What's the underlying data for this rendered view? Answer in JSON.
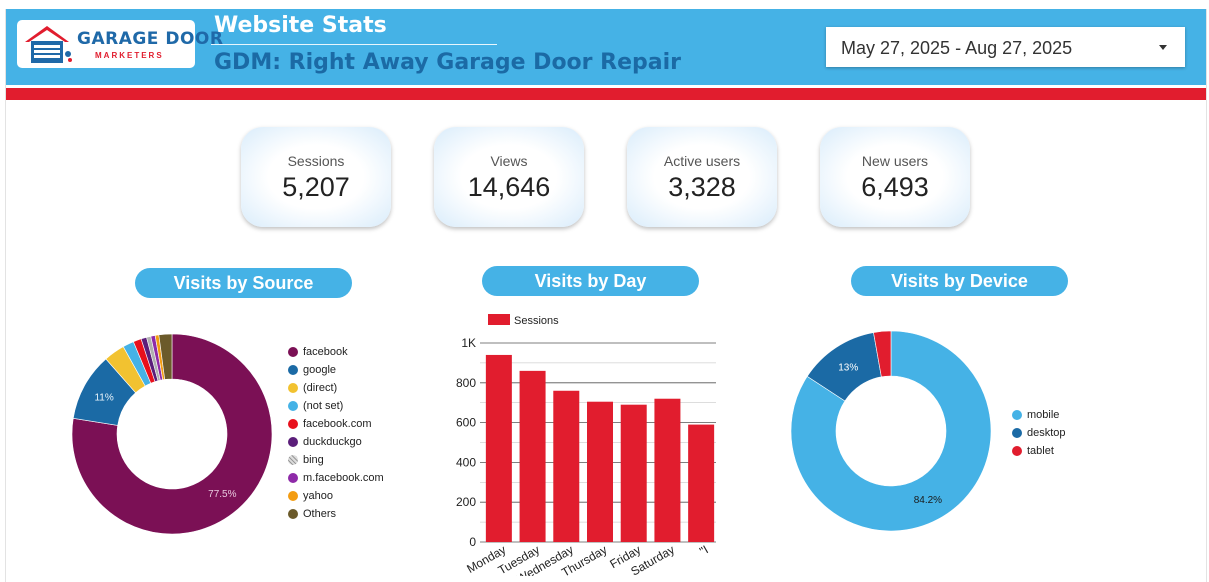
{
  "header": {
    "logo_text_top_a": "GARAGE DOOR",
    "logo_text_bottom": "MARKETERS",
    "title": "Website Stats",
    "subtitle": "GDM: Right Away Garage Door Repair",
    "date_range": "May 27, 2025 - Aug 27, 2025",
    "colors": {
      "header": "#45b2e6",
      "accent_red": "#e11d2e",
      "subtitle": "#1b6aa5"
    }
  },
  "kpis": [
    {
      "label": "Sessions",
      "value": "5,207"
    },
    {
      "label": "Views",
      "value": "14,646"
    },
    {
      "label": "Active users",
      "value": "3,328"
    },
    {
      "label": "New users",
      "value": "6,493"
    }
  ],
  "sections": {
    "source": "Visits by Source",
    "day": "Visits by Day",
    "device": "Visits by Device"
  },
  "chart_data": [
    {
      "type": "pie",
      "title": "Visits by Source",
      "legend_position": "right",
      "categories": [
        "facebook",
        "google",
        "(direct)",
        "(not set)",
        "facebook.com",
        "duckduckgo",
        "bing",
        "m.facebook.com",
        "yahoo",
        "Others"
      ],
      "values": [
        77.5,
        11,
        3.4,
        1.8,
        1.3,
        0.9,
        0.7,
        0.7,
        0.6,
        2.1
      ],
      "colors": [
        "#7b1055",
        "#1b6aa5",
        "#f2c230",
        "#45b2e6",
        "#e8101c",
        "#5b1e7a",
        "#b0b0b0",
        "#8e2aa8",
        "#f39c12",
        "#6b5a2a"
      ],
      "data_labels": [
        "77.5%",
        "11%",
        "",
        "",
        "",
        "",
        "",
        "",
        "",
        ""
      ]
    },
    {
      "type": "bar",
      "title": "Visits by Day",
      "series": [
        {
          "name": "Sessions",
          "values": [
            940,
            860,
            760,
            705,
            690,
            720,
            590
          ],
          "color": "#e11d2e"
        }
      ],
      "categories": [
        "Monday",
        "Tuesday",
        "Wednesday",
        "Thursday",
        "Friday",
        "Saturday",
        "\"I"
      ],
      "y_ticks": [
        "0",
        "200",
        "400",
        "600",
        "800",
        "1K"
      ],
      "ylim": [
        0,
        1000
      ],
      "grid": true,
      "legend_position": "top-left"
    },
    {
      "type": "pie",
      "title": "Visits by Device",
      "legend_position": "right",
      "categories": [
        "mobile",
        "desktop",
        "tablet"
      ],
      "values": [
        84.2,
        13,
        2.8
      ],
      "colors": [
        "#45b2e6",
        "#1b6aa5",
        "#e11d2e"
      ],
      "data_labels": [
        "84.2%",
        "13%",
        ""
      ]
    }
  ]
}
